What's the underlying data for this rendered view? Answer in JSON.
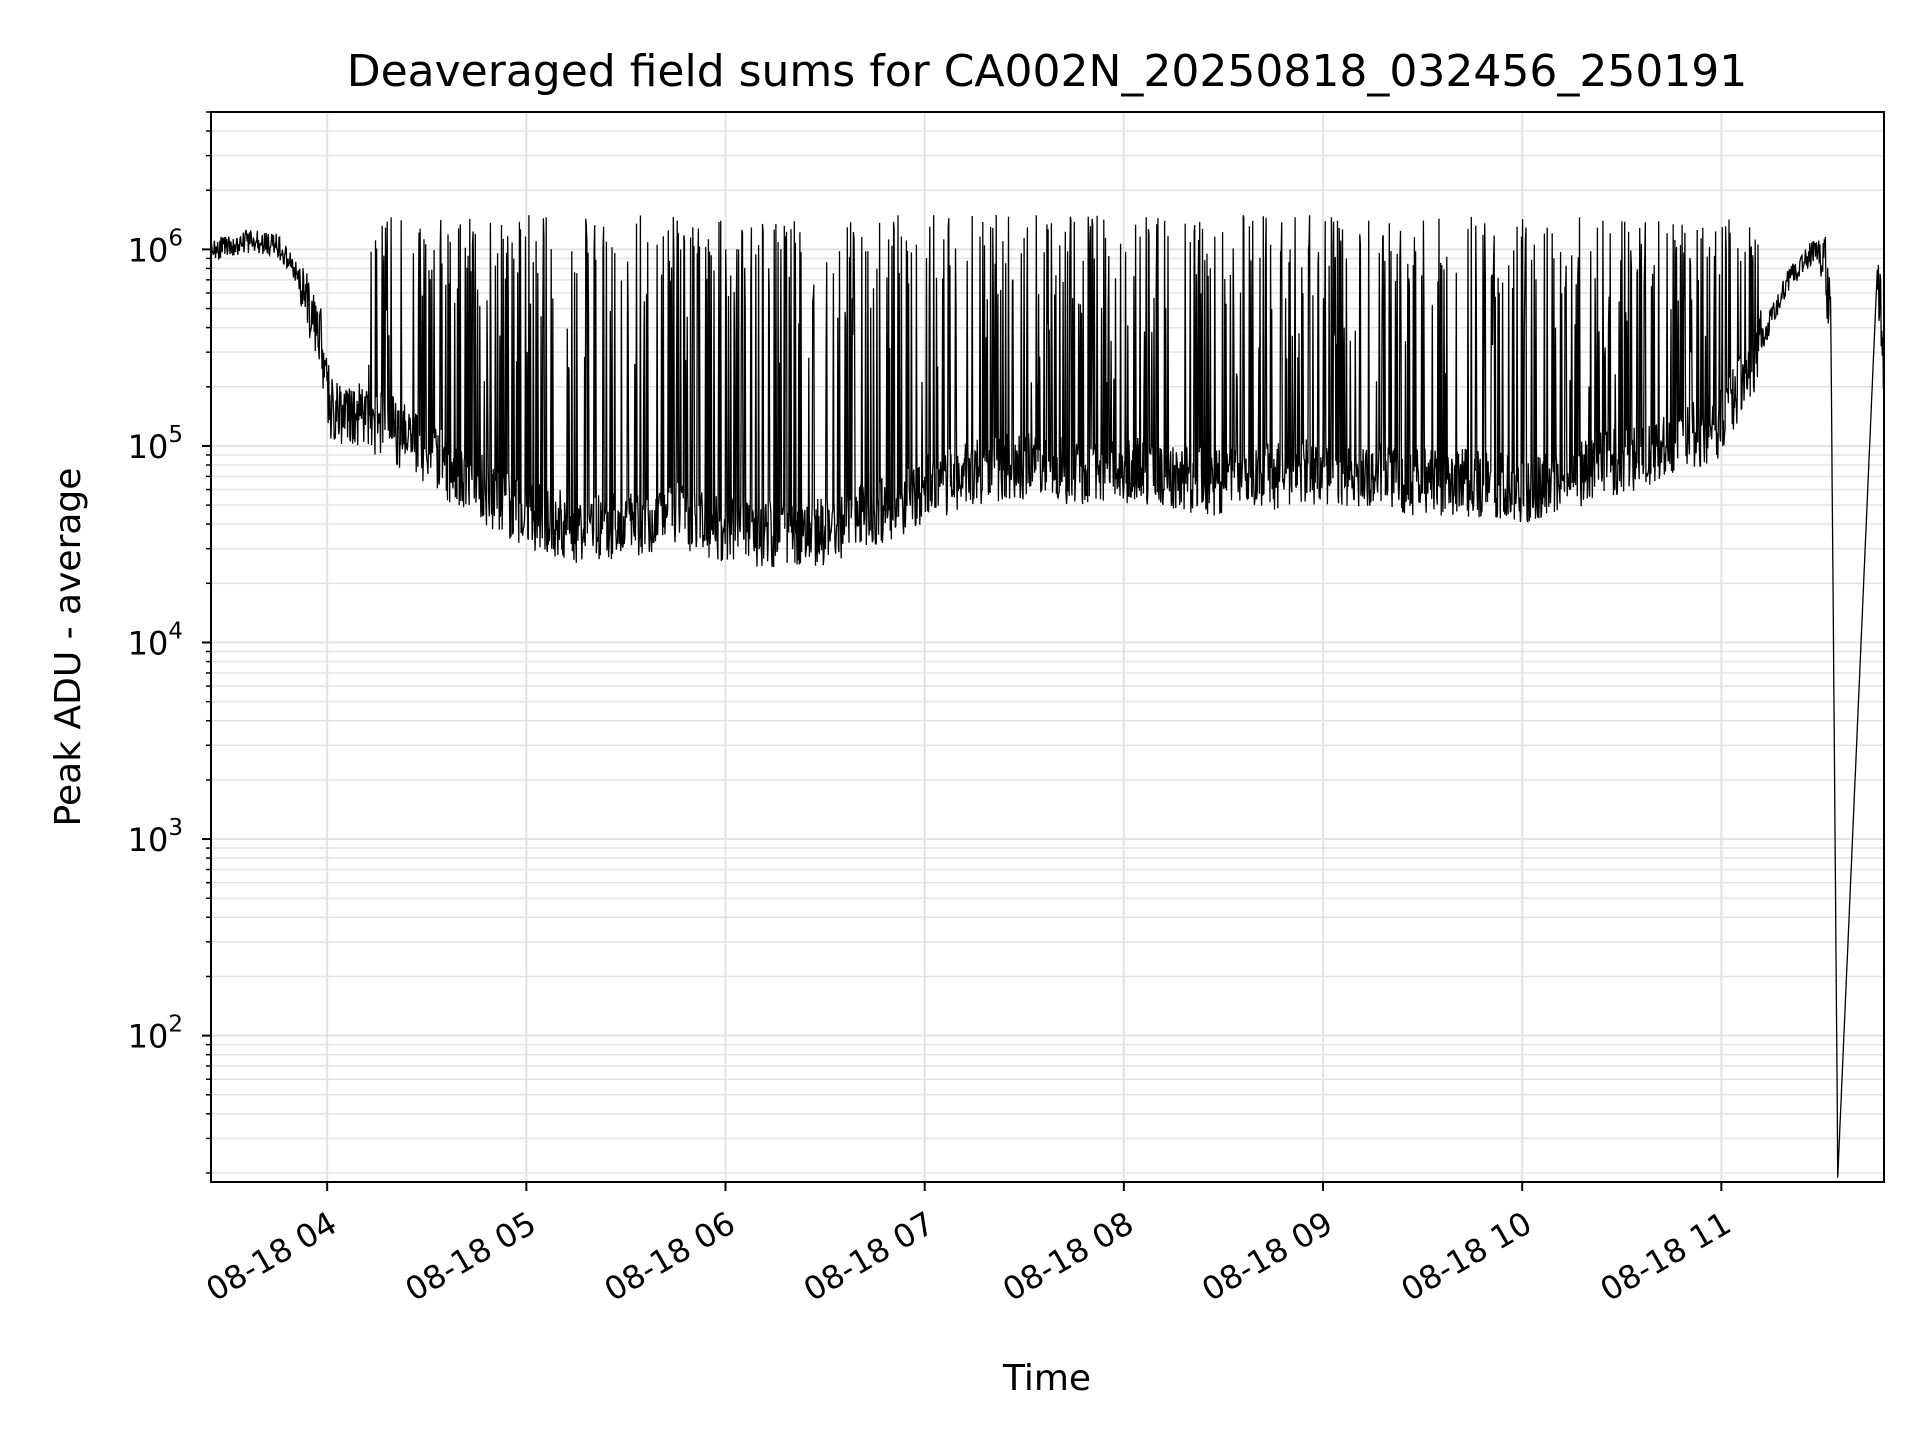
{
  "chart_data": {
    "type": "line",
    "title": "Deaveraged field sums for CA002N_20250818_032456_250191",
    "xlabel": "Time",
    "ylabel": "Peak ADU - average",
    "yscale": "log",
    "ylim": [
      18,
      5000000
    ],
    "xlim": [
      "08-18 03:25",
      "08-18 11:49"
    ],
    "grid": true,
    "grid_minor_y": true,
    "line_color": "#000000",
    "grid_color": "#e3e3e3",
    "x_ticks": [
      {
        "label": "08-18 04",
        "t": "08-18 04:00"
      },
      {
        "label": "08-18 05",
        "t": "08-18 05:00"
      },
      {
        "label": "08-18 06",
        "t": "08-18 06:00"
      },
      {
        "label": "08-18 07",
        "t": "08-18 07:00"
      },
      {
        "label": "08-18 08",
        "t": "08-18 08:00"
      },
      {
        "label": "08-18 09",
        "t": "08-18 09:00"
      },
      {
        "label": "08-18 10",
        "t": "08-18 10:00"
      },
      {
        "label": "08-18 11",
        "t": "08-18 11:00"
      }
    ],
    "y_ticks": [
      {
        "base": "10",
        "exp": "2",
        "value": 100
      },
      {
        "base": "10",
        "exp": "3",
        "value": 1000
      },
      {
        "base": "10",
        "exp": "4",
        "value": 10000
      },
      {
        "base": "10",
        "exp": "5",
        "value": 100000
      },
      {
        "base": "10",
        "exp": "6",
        "value": 1000000
      }
    ],
    "series": [
      {
        "description_points": "baseline envelope (approximate), time vs Peak ADU - average",
        "x": [
          "08-18 03:25",
          "08-18 03:36",
          "08-18 03:45",
          "08-18 03:52",
          "08-18 03:58",
          "08-18 04:01",
          "08-18 04:10",
          "08-18 04:25",
          "08-18 04:40",
          "08-18 05:00",
          "08-18 05:15",
          "08-18 05:30",
          "08-18 05:45",
          "08-18 06:00",
          "08-18 06:15",
          "08-18 06:30",
          "08-18 06:45",
          "08-18 07:00",
          "08-18 07:15",
          "08-18 07:30",
          "08-18 07:45",
          "08-18 08:00",
          "08-18 08:15",
          "08-18 08:30",
          "08-18 08:45",
          "08-18 09:00",
          "08-18 09:15",
          "08-18 09:30",
          "08-18 09:45",
          "08-18 10:00",
          "08-18 10:15",
          "08-18 10:30",
          "08-18 10:45",
          "08-18 11:00",
          "08-18 11:10",
          "08-18 11:20",
          "08-18 11:28",
          "08-18 11:31",
          "08-18 11:33",
          "08-18 11:35",
          "08-18 11:35",
          "08-18 11:47",
          "08-18 11:48",
          "08-18 11:49"
        ],
        "y": [
          1000000,
          1100000,
          1050000,
          700000,
          350000,
          160000,
          140000,
          110000,
          70000,
          45000,
          38000,
          40000,
          45000,
          38000,
          35000,
          37000,
          45000,
          60000,
          75000,
          80000,
          75000,
          75000,
          70000,
          65000,
          70000,
          75000,
          70000,
          65000,
          65000,
          60000,
          70000,
          85000,
          100000,
          130000,
          280000,
          700000,
          1000000,
          950000,
          400000,
          30,
          18,
          800000,
          500000,
          200000
        ]
      }
    ]
  }
}
